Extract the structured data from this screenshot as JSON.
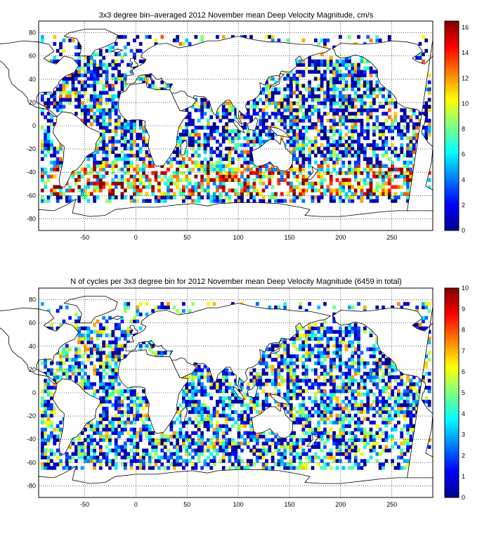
{
  "panels": [
    {
      "title": "3x3 degree bin–averaged 2012 November mean Deep Velocity Magnitude, cm/s",
      "x_ticks": [
        "-50",
        "0",
        "50",
        "100",
        "150",
        "200",
        "250"
      ],
      "y_ticks": [
        "80",
        "60",
        "40",
        "20",
        "0",
        "-20",
        "-40",
        "-60",
        "-80"
      ],
      "colorbar_ticks": [
        "16",
        "14",
        "12",
        "10",
        "8",
        "6",
        "4",
        "2",
        "0"
      ],
      "colorbar_range": [
        0,
        16.5
      ],
      "lon_range": [
        -95,
        290
      ],
      "lat_range": [
        -90,
        90
      ],
      "colormap": "jet"
    },
    {
      "title": "N of cycles per 3x3 degree bin for 2012 November mean Deep Velocity Magnitude (6459 in total)",
      "x_ticks": [
        "-50",
        "0",
        "50",
        "100",
        "150",
        "200",
        "250"
      ],
      "y_ticks": [
        "80",
        "60",
        "40",
        "20",
        "0",
        "-20",
        "-40",
        "-60",
        "-80"
      ],
      "colorbar_ticks": [
        "10",
        "9",
        "8",
        "7",
        "6",
        "5",
        "4",
        "3",
        "2",
        "1",
        "0"
      ],
      "colorbar_range": [
        0,
        10
      ],
      "lon_range": [
        -95,
        290
      ],
      "lat_range": [
        -90,
        90
      ],
      "colormap": "jet"
    }
  ]
}
